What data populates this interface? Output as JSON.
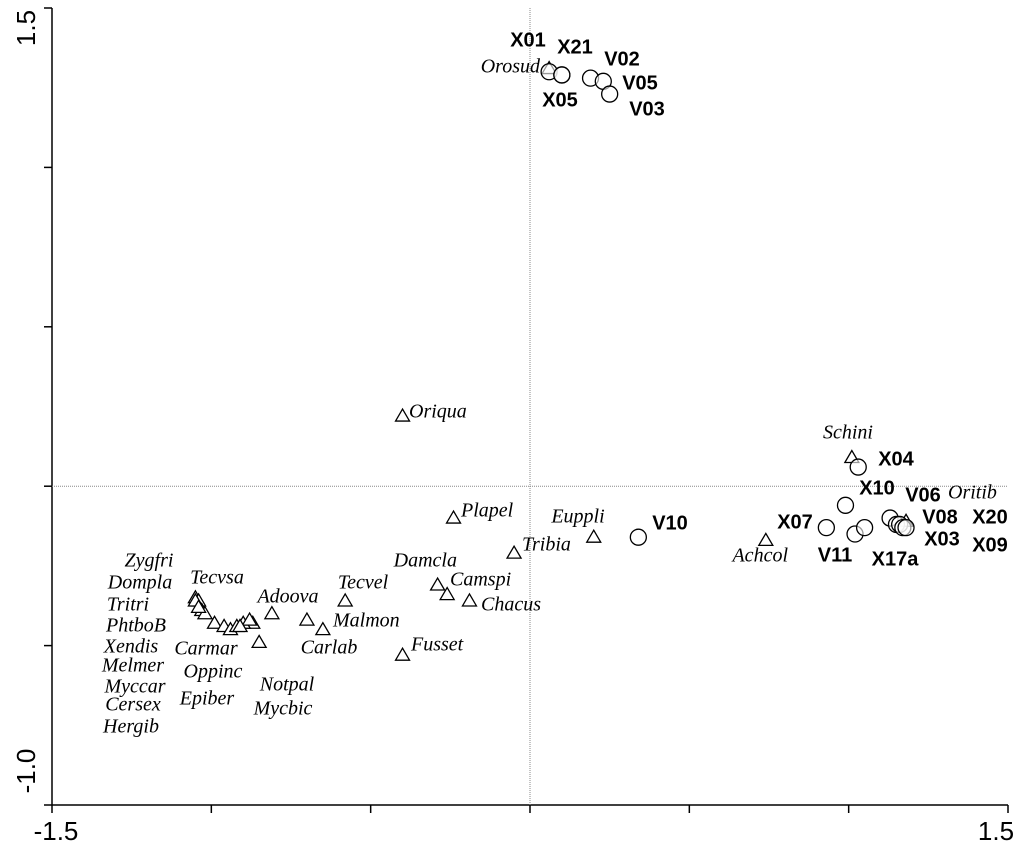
{
  "chart_data": {
    "type": "scatter",
    "xlim": [
      -1.5,
      1.5
    ],
    "ylim": [
      {
        "value": -1,
        "label": "-1.0"
      },
      1.5
    ],
    "xticks": [
      -1.5,
      1.5
    ],
    "yticks": [
      {
        "value": -1,
        "label": "-1.0"
      },
      1.5
    ],
    "xminor_ticks": [
      -1,
      -0.5,
      0,
      0.5,
      1
    ],
    "yminor_ticks": [
      -0.5,
      0,
      0.5,
      1
    ],
    "zero_lines": true,
    "series": [
      {
        "marker": "triangle",
        "color": "#000000",
        "labels": [
          "Orosud",
          "Oriqua",
          "Schini",
          "Oritib",
          "Plapel",
          "Euppli",
          "Tribia",
          "Achcol",
          "Damcla",
          "Camspi",
          "Chacus",
          "Tecvel",
          "Malmon",
          "Carlab",
          "Fusset",
          "Adoova",
          "Notpal",
          "Mycbic",
          "Zygfri",
          "Dompla",
          "Tecvsa",
          "Tritri",
          "PhtboB",
          "Xendis",
          "Carmar",
          "Melmer",
          "Oppinc",
          "Myccar",
          "Cersex",
          "Epiber",
          "Hergib"
        ],
        "x": [
          0.06,
          -0.4,
          1.01,
          1.18,
          -0.24,
          0.2,
          -0.05,
          0.74,
          -0.29,
          -0.26,
          -0.19,
          -0.58,
          -0.65,
          -0.7,
          -0.4,
          -0.81,
          -0.85,
          -0.87,
          -1.05,
          -1.04,
          -1.03,
          -1.02,
          -0.99,
          -0.96,
          -0.94,
          -0.92,
          -0.9,
          -0.88,
          -1.05,
          -1.04,
          -0.91
        ],
        "values": [
          1.31,
          0.22,
          0.09,
          -0.11,
          -0.1,
          -0.16,
          -0.21,
          -0.17,
          -0.31,
          -0.34,
          -0.36,
          -0.36,
          -0.45,
          -0.42,
          -0.53,
          -0.4,
          -0.49,
          -0.43,
          -0.35,
          -0.36,
          -0.39,
          -0.4,
          -0.43,
          -0.44,
          -0.45,
          -0.44,
          -0.43,
          -0.42,
          -0.36,
          -0.38,
          -0.44
        ]
      },
      {
        "marker": "circle",
        "color": "#000000",
        "labels": [
          "X01",
          "X21",
          "V02",
          "V05",
          "V03",
          "X05",
          "X04",
          "X10",
          "V06",
          "V08",
          "X20",
          "X03",
          "X09",
          "X17a",
          "V11",
          "X07",
          "V10"
        ],
        "x": [
          0.06,
          0.1,
          0.19,
          0.23,
          0.25,
          0.1,
          1.03,
          0.99,
          1.13,
          1.15,
          1.16,
          1.17,
          1.18,
          1.02,
          1.05,
          0.93,
          0.34
        ],
        "values": [
          1.3,
          1.29,
          1.28,
          1.27,
          1.23,
          1.29,
          0.06,
          -0.06,
          -0.1,
          -0.12,
          -0.12,
          -0.13,
          -0.13,
          -0.15,
          -0.13,
          -0.13,
          -0.16
        ]
      }
    ]
  }
}
